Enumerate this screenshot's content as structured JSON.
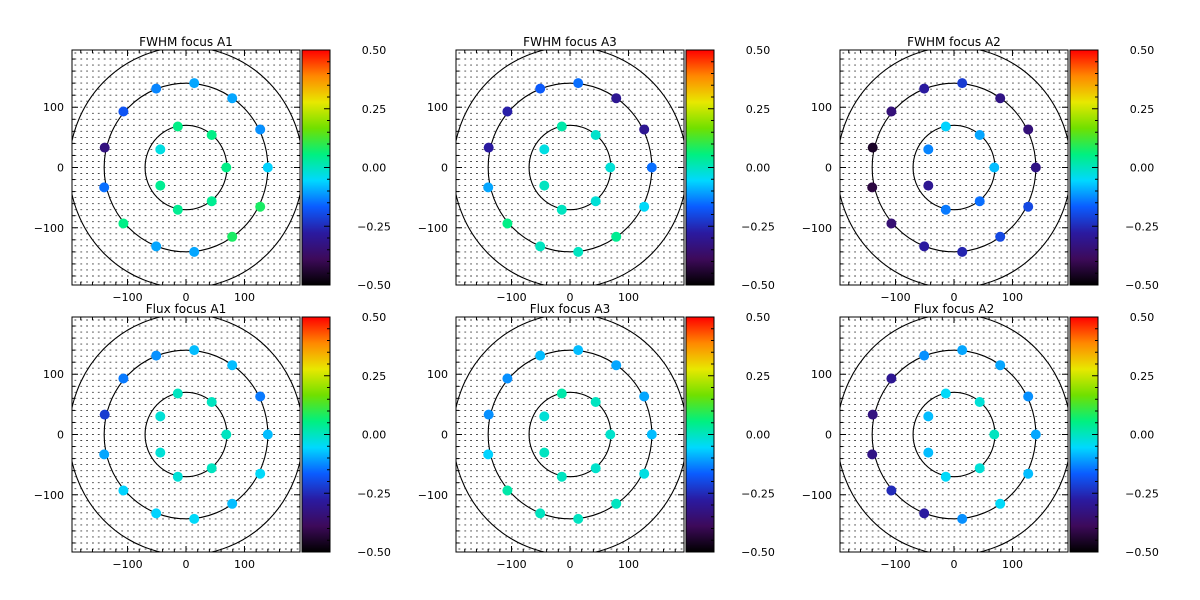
{
  "colors": {
    "axis": "#000000",
    "grid_dot": "#000000",
    "background": "#ffffff"
  },
  "colorbar": {
    "min": -0.5,
    "max": 0.5,
    "tick_values": [
      0.5,
      0.25,
      0.0,
      -0.25,
      -0.5
    ],
    "tick_labels": [
      "0.50",
      "0.25",
      "0.00",
      "−0.25",
      "−0.50"
    ],
    "stops": [
      "#000000",
      "#3d0a5a",
      "#2a1aa0",
      "#0a5cff",
      "#00d8ff",
      "#00f080",
      "#70e000",
      "#e8e800",
      "#ff8800",
      "#ff0000"
    ]
  },
  "chart_data": [
    {
      "type": "scatter",
      "title": "FWHM focus A1",
      "xlim": [
        -195,
        195
      ],
      "ylim": [
        -195,
        195
      ],
      "x_tick_values": [
        -100,
        0,
        100
      ],
      "x_tick_labels": [
        "−100",
        "0",
        "100"
      ],
      "y_tick_values": [
        100,
        0,
        -100
      ],
      "y_tick_labels": [
        "100",
        "0",
        "−100"
      ],
      "circle_radii": [
        70,
        140,
        200
      ],
      "points": [
        {
          "x": 14,
          "y": 140,
          "v": -0.1
        },
        {
          "x": -51,
          "y": 131,
          "v": -0.13
        },
        {
          "x": 79,
          "y": 115,
          "v": -0.1
        },
        {
          "x": -107,
          "y": 93,
          "v": -0.18
        },
        {
          "x": 127,
          "y": 63,
          "v": -0.12
        },
        {
          "x": -139,
          "y": 33,
          "v": -0.33
        },
        {
          "x": 140,
          "y": 0,
          "v": -0.06
        },
        {
          "x": -140,
          "y": -33,
          "v": -0.15
        },
        {
          "x": 127,
          "y": -65,
          "v": 0.08
        },
        {
          "x": -107,
          "y": -93,
          "v": 0.05
        },
        {
          "x": 79,
          "y": -115,
          "v": 0.08
        },
        {
          "x": -51,
          "y": -131,
          "v": -0.1
        },
        {
          "x": 14,
          "y": -140,
          "v": -0.1
        },
        {
          "x": -14,
          "y": 68,
          "v": 0.05
        },
        {
          "x": 44,
          "y": 54,
          "v": 0.05
        },
        {
          "x": -44,
          "y": 30,
          "v": -0.03
        },
        {
          "x": 69,
          "y": 0,
          "v": 0.05
        },
        {
          "x": -44,
          "y": -30,
          "v": 0.04
        },
        {
          "x": 44,
          "y": -56,
          "v": 0.04
        },
        {
          "x": -14,
          "y": -70,
          "v": 0.04
        }
      ]
    },
    {
      "type": "scatter",
      "title": "FWHM focus A3",
      "xlim": [
        -195,
        195
      ],
      "ylim": [
        -195,
        195
      ],
      "x_tick_values": [
        -100,
        0,
        100
      ],
      "x_tick_labels": [
        "−100",
        "0",
        "100"
      ],
      "y_tick_values": [
        100,
        0,
        -100
      ],
      "y_tick_labels": [
        "100",
        "0",
        "−100"
      ],
      "circle_radii": [
        70,
        140,
        200
      ],
      "points": [
        {
          "x": 14,
          "y": 140,
          "v": -0.15
        },
        {
          "x": -51,
          "y": 131,
          "v": -0.17
        },
        {
          "x": 79,
          "y": 115,
          "v": -0.3
        },
        {
          "x": -107,
          "y": 93,
          "v": -0.27
        },
        {
          "x": 127,
          "y": 63,
          "v": -0.3
        },
        {
          "x": -139,
          "y": 33,
          "v": -0.28
        },
        {
          "x": 140,
          "y": 0,
          "v": -0.15
        },
        {
          "x": -140,
          "y": -33,
          "v": -0.1
        },
        {
          "x": 127,
          "y": -65,
          "v": -0.05
        },
        {
          "x": -107,
          "y": -93,
          "v": 0.05
        },
        {
          "x": 79,
          "y": -115,
          "v": 0.04
        },
        {
          "x": -51,
          "y": -131,
          "v": 0.0
        },
        {
          "x": 14,
          "y": -140,
          "v": 0.0
        },
        {
          "x": -14,
          "y": 68,
          "v": 0.02
        },
        {
          "x": 44,
          "y": 54,
          "v": -0.01
        },
        {
          "x": -44,
          "y": 30,
          "v": -0.03
        },
        {
          "x": 69,
          "y": 0,
          "v": -0.02
        },
        {
          "x": -44,
          "y": -30,
          "v": 0.0
        },
        {
          "x": 44,
          "y": -56,
          "v": -0.02
        },
        {
          "x": -14,
          "y": -70,
          "v": 0.0
        }
      ]
    },
    {
      "type": "scatter",
      "title": "FWHM focus A2",
      "xlim": [
        -195,
        195
      ],
      "ylim": [
        -195,
        195
      ],
      "x_tick_values": [
        -100,
        0,
        100
      ],
      "x_tick_labels": [
        "−100",
        "0",
        "100"
      ],
      "y_tick_values": [
        100,
        0,
        -100
      ],
      "y_tick_labels": [
        "100",
        "0",
        "−100"
      ],
      "circle_radii": [
        70,
        140,
        200
      ],
      "points": [
        {
          "x": 14,
          "y": 140,
          "v": -0.22
        },
        {
          "x": -51,
          "y": 131,
          "v": -0.28
        },
        {
          "x": 79,
          "y": 115,
          "v": -0.32
        },
        {
          "x": -107,
          "y": 93,
          "v": -0.34
        },
        {
          "x": 127,
          "y": 63,
          "v": -0.34
        },
        {
          "x": -139,
          "y": 33,
          "v": -0.45
        },
        {
          "x": 140,
          "y": 0,
          "v": -0.32
        },
        {
          "x": -140,
          "y": -33,
          "v": -0.42
        },
        {
          "x": 127,
          "y": -65,
          "v": -0.2
        },
        {
          "x": -107,
          "y": -93,
          "v": -0.35
        },
        {
          "x": 79,
          "y": -115,
          "v": -0.2
        },
        {
          "x": -51,
          "y": -131,
          "v": -0.28
        },
        {
          "x": 14,
          "y": -140,
          "v": -0.26
        },
        {
          "x": -14,
          "y": 68,
          "v": -0.06
        },
        {
          "x": 44,
          "y": 54,
          "v": -0.1
        },
        {
          "x": -44,
          "y": 30,
          "v": -0.13
        },
        {
          "x": 69,
          "y": 0,
          "v": -0.08
        },
        {
          "x": -44,
          "y": -30,
          "v": -0.3
        },
        {
          "x": 44,
          "y": -56,
          "v": -0.15
        },
        {
          "x": -14,
          "y": -70,
          "v": -0.14
        }
      ]
    },
    {
      "type": "scatter",
      "title": "Flux focus A1",
      "xlim": [
        -195,
        195
      ],
      "ylim": [
        -195,
        195
      ],
      "x_tick_values": [
        -100,
        0,
        100
      ],
      "x_tick_labels": [
        "−100",
        "0",
        "100"
      ],
      "y_tick_values": [
        100,
        0,
        -100
      ],
      "y_tick_labels": [
        "100",
        "0",
        "−100"
      ],
      "circle_radii": [
        70,
        140,
        200
      ],
      "points": [
        {
          "x": 14,
          "y": 140,
          "v": -0.08
        },
        {
          "x": -51,
          "y": 131,
          "v": -0.12
        },
        {
          "x": 79,
          "y": 115,
          "v": -0.08
        },
        {
          "x": -107,
          "y": 93,
          "v": -0.14
        },
        {
          "x": 127,
          "y": 63,
          "v": -0.14
        },
        {
          "x": -139,
          "y": 33,
          "v": -0.22
        },
        {
          "x": 140,
          "y": 0,
          "v": -0.08
        },
        {
          "x": -140,
          "y": -33,
          "v": -0.1
        },
        {
          "x": 127,
          "y": -65,
          "v": -0.05
        },
        {
          "x": -107,
          "y": -93,
          "v": -0.06
        },
        {
          "x": 79,
          "y": -115,
          "v": -0.08
        },
        {
          "x": -51,
          "y": -131,
          "v": -0.06
        },
        {
          "x": 14,
          "y": -140,
          "v": -0.05
        },
        {
          "x": -14,
          "y": 68,
          "v": 0.0
        },
        {
          "x": 44,
          "y": 54,
          "v": 0.0
        },
        {
          "x": -44,
          "y": 30,
          "v": -0.02
        },
        {
          "x": 69,
          "y": 0,
          "v": 0.0
        },
        {
          "x": -44,
          "y": -30,
          "v": -0.02
        },
        {
          "x": 44,
          "y": -56,
          "v": 0.0
        },
        {
          "x": -14,
          "y": -70,
          "v": -0.02
        }
      ]
    },
    {
      "type": "scatter",
      "title": "Flux focus A3",
      "xlim": [
        -195,
        195
      ],
      "ylim": [
        -195,
        195
      ],
      "x_tick_values": [
        -100,
        0,
        100
      ],
      "x_tick_labels": [
        "−100",
        "0",
        "100"
      ],
      "y_tick_values": [
        100,
        0,
        -100
      ],
      "y_tick_labels": [
        "100",
        "0",
        "−100"
      ],
      "circle_radii": [
        70,
        140,
        200
      ],
      "points": [
        {
          "x": 14,
          "y": 140,
          "v": -0.08
        },
        {
          "x": -51,
          "y": 131,
          "v": -0.08
        },
        {
          "x": 79,
          "y": 115,
          "v": -0.1
        },
        {
          "x": -107,
          "y": 93,
          "v": -0.12
        },
        {
          "x": 127,
          "y": 63,
          "v": -0.1
        },
        {
          "x": -139,
          "y": 33,
          "v": -0.12
        },
        {
          "x": 140,
          "y": 0,
          "v": -0.08
        },
        {
          "x": -140,
          "y": -33,
          "v": -0.06
        },
        {
          "x": 127,
          "y": -65,
          "v": -0.03
        },
        {
          "x": -107,
          "y": -93,
          "v": 0.02
        },
        {
          "x": 79,
          "y": -115,
          "v": 0.0
        },
        {
          "x": -51,
          "y": -131,
          "v": 0.0
        },
        {
          "x": 14,
          "y": -140,
          "v": 0.0
        },
        {
          "x": -14,
          "y": 68,
          "v": 0.02
        },
        {
          "x": 44,
          "y": 54,
          "v": 0.0
        },
        {
          "x": -44,
          "y": 30,
          "v": -0.02
        },
        {
          "x": 69,
          "y": 0,
          "v": -0.01
        },
        {
          "x": -44,
          "y": -30,
          "v": 0.0
        },
        {
          "x": 44,
          "y": -56,
          "v": -0.01
        },
        {
          "x": -14,
          "y": -70,
          "v": 0.0
        }
      ]
    },
    {
      "type": "scatter",
      "title": "Flux focus A2",
      "xlim": [
        -195,
        195
      ],
      "ylim": [
        -195,
        195
      ],
      "x_tick_values": [
        -100,
        0,
        100
      ],
      "x_tick_labels": [
        "−100",
        "0",
        "100"
      ],
      "y_tick_values": [
        100,
        0,
        -100
      ],
      "y_tick_labels": [
        "100",
        "0",
        "−100"
      ],
      "circle_radii": [
        70,
        140,
        200
      ],
      "points": [
        {
          "x": 14,
          "y": 140,
          "v": -0.1
        },
        {
          "x": -51,
          "y": 131,
          "v": -0.12
        },
        {
          "x": 79,
          "y": 115,
          "v": -0.1
        },
        {
          "x": -107,
          "y": 93,
          "v": -0.3
        },
        {
          "x": 127,
          "y": 63,
          "v": -0.12
        },
        {
          "x": -139,
          "y": 33,
          "v": -0.33
        },
        {
          "x": 140,
          "y": 0,
          "v": -0.1
        },
        {
          "x": -140,
          "y": -33,
          "v": -0.32
        },
        {
          "x": 127,
          "y": -65,
          "v": -0.08
        },
        {
          "x": -107,
          "y": -93,
          "v": -0.25
        },
        {
          "x": 79,
          "y": -115,
          "v": -0.05
        },
        {
          "x": -51,
          "y": -131,
          "v": -0.28
        },
        {
          "x": 14,
          "y": -140,
          "v": -0.12
        },
        {
          "x": -14,
          "y": 68,
          "v": -0.05
        },
        {
          "x": 44,
          "y": 54,
          "v": -0.02
        },
        {
          "x": -44,
          "y": 30,
          "v": -0.08
        },
        {
          "x": 69,
          "y": 0,
          "v": 0.0
        },
        {
          "x": -44,
          "y": -30,
          "v": -0.08
        },
        {
          "x": 44,
          "y": -56,
          "v": -0.02
        },
        {
          "x": -14,
          "y": -70,
          "v": -0.05
        }
      ]
    }
  ]
}
